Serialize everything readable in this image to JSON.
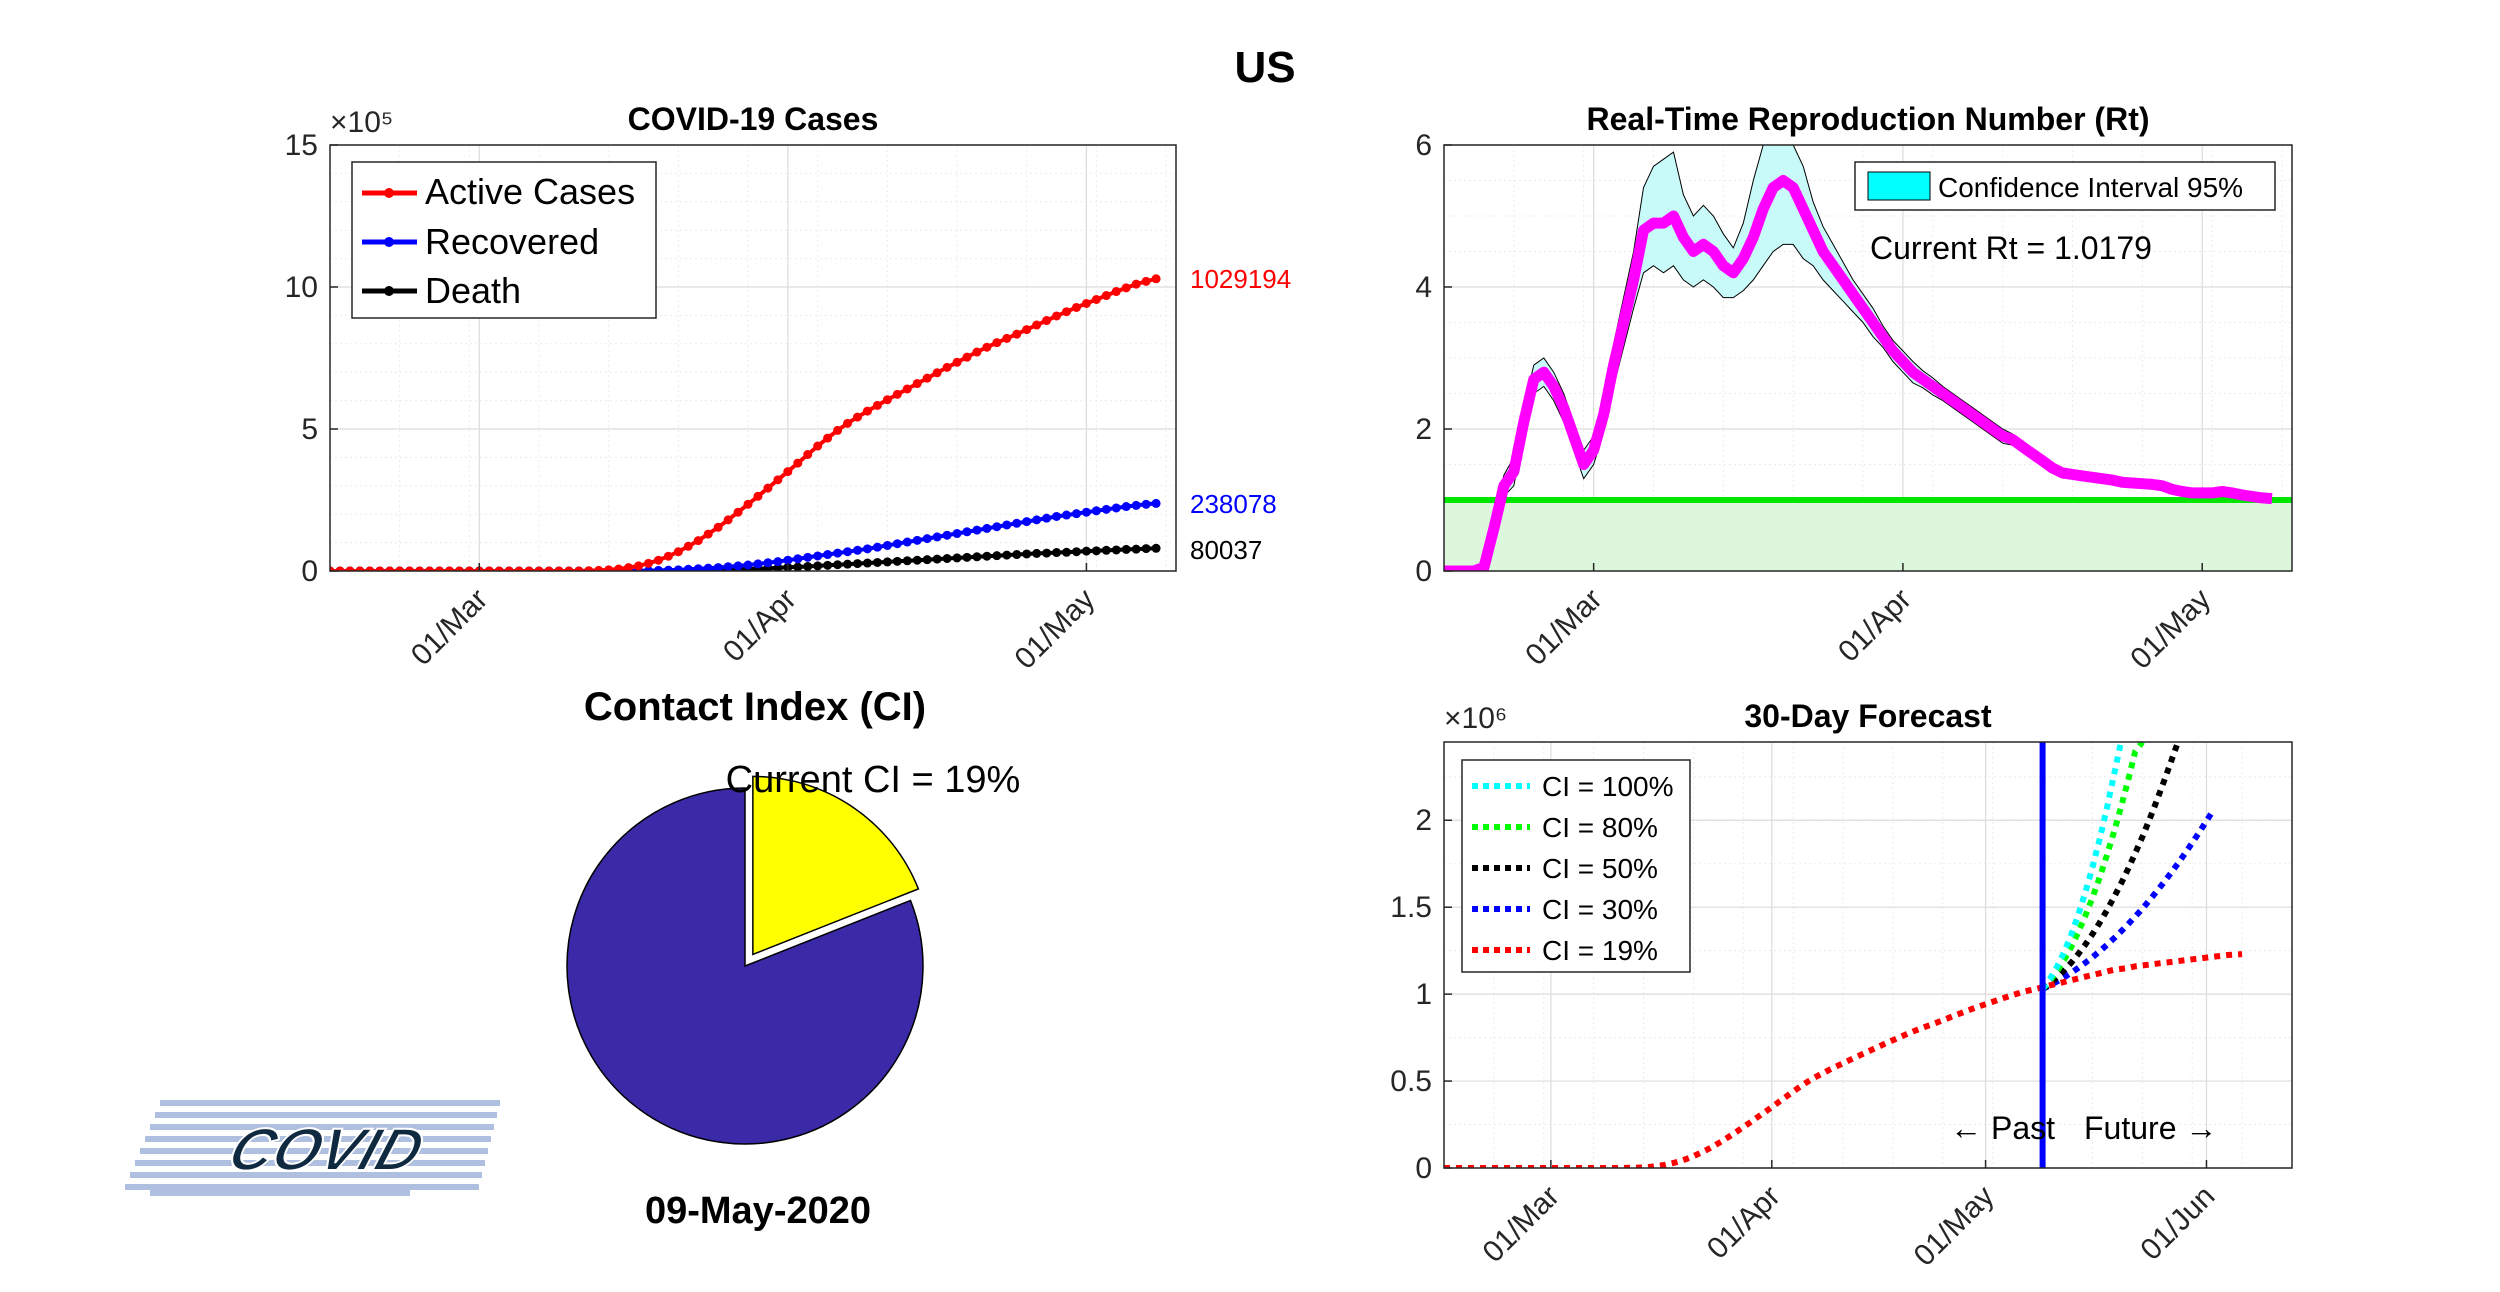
{
  "page": {
    "country": "US",
    "date": "09-May-2020",
    "logo_text": "COVID",
    "ci_title": "Contact Index (CI)",
    "ci_current_text": "Current CI = 19%"
  },
  "colors": {
    "active": "#ff0000",
    "recovered": "#0000ff",
    "death": "#000000",
    "rt_line": "#ff00ff",
    "rt_threshold": "#00e600",
    "ci_band": "#00ffff",
    "pie_main": "#3b2aa8",
    "pie_slice": "#ffff00",
    "forecast_now": "#0000ff"
  },
  "chart_data": [
    {
      "id": "cases",
      "type": "line",
      "title": "COVID-19 Cases",
      "y_exponent_label": "×10⁵",
      "x_ticks": [
        "01/Mar",
        "01/Apr",
        "01/May"
      ],
      "y_ticks": [
        "0",
        "5",
        "10",
        "15"
      ],
      "ylim": [
        0,
        15
      ],
      "legend": [
        "Active Cases",
        "Recovered",
        "Death"
      ],
      "end_labels": [
        "1029194",
        "238078",
        "80037"
      ],
      "x_start_date": "2020-02-15",
      "series": [
        {
          "name": "Active Cases",
          "values": [
            0,
            0,
            0,
            0,
            0,
            0,
            0,
            0,
            0,
            0,
            0,
            0,
            0,
            0,
            0,
            0,
            0,
            0,
            0,
            0,
            0,
            0,
            0,
            0,
            0,
            0,
            0.01,
            0.02,
            0.04,
            0.07,
            0.12,
            0.18,
            0.27,
            0.38,
            0.52,
            0.68,
            0.87,
            1.07,
            1.3,
            1.54,
            1.8,
            2.07,
            2.35,
            2.63,
            2.92,
            3.21,
            3.5,
            3.8,
            4.1,
            4.4,
            4.68,
            4.95,
            5.2,
            5.42,
            5.63,
            5.83,
            6.03,
            6.22,
            6.41,
            6.6,
            6.79,
            6.98,
            7.17,
            7.35,
            7.53,
            7.71,
            7.88,
            8.04,
            8.19,
            8.34,
            8.5,
            8.66,
            8.82,
            8.98,
            9.13,
            9.28,
            9.42,
            9.56,
            9.7,
            9.84,
            9.97,
            10.1,
            10.2,
            10.29
          ]
        },
        {
          "name": "Recovered",
          "values": [
            0,
            0,
            0,
            0,
            0,
            0,
            0,
            0,
            0,
            0,
            0,
            0,
            0,
            0,
            0,
            0,
            0,
            0,
            0,
            0,
            0,
            0,
            0,
            0,
            0,
            0,
            0,
            0,
            0,
            0,
            0,
            0.01,
            0.01,
            0.02,
            0.03,
            0.04,
            0.06,
            0.08,
            0.1,
            0.12,
            0.15,
            0.18,
            0.21,
            0.25,
            0.29,
            0.33,
            0.38,
            0.43,
            0.48,
            0.53,
            0.58,
            0.63,
            0.68,
            0.73,
            0.78,
            0.84,
            0.9,
            0.96,
            1.02,
            1.08,
            1.14,
            1.2,
            1.26,
            1.32,
            1.38,
            1.44,
            1.5,
            1.56,
            1.62,
            1.68,
            1.74,
            1.8,
            1.86,
            1.92,
            1.97,
            2.02,
            2.07,
            2.12,
            2.17,
            2.22,
            2.27,
            2.31,
            2.35,
            2.38
          ]
        },
        {
          "name": "Death",
          "values": [
            0,
            0,
            0,
            0,
            0,
            0,
            0,
            0,
            0,
            0,
            0,
            0,
            0,
            0,
            0,
            0,
            0,
            0,
            0,
            0,
            0,
            0,
            0,
            0,
            0,
            0,
            0,
            0,
            0,
            0,
            0,
            0,
            0,
            0.01,
            0.01,
            0.01,
            0.02,
            0.02,
            0.03,
            0.04,
            0.05,
            0.06,
            0.07,
            0.08,
            0.1,
            0.11,
            0.13,
            0.14,
            0.16,
            0.18,
            0.2,
            0.22,
            0.24,
            0.26,
            0.28,
            0.3,
            0.32,
            0.34,
            0.36,
            0.38,
            0.4,
            0.42,
            0.44,
            0.46,
            0.48,
            0.5,
            0.52,
            0.54,
            0.56,
            0.58,
            0.6,
            0.62,
            0.63,
            0.65,
            0.66,
            0.68,
            0.7,
            0.71,
            0.73,
            0.74,
            0.76,
            0.77,
            0.79,
            0.8
          ]
        }
      ]
    },
    {
      "id": "rt",
      "type": "line",
      "title": "Real-Time Reproduction Number (Rt)",
      "x_ticks": [
        "01/Mar",
        "01/Apr",
        "01/May"
      ],
      "y_ticks": [
        "0",
        "2",
        "4",
        "6"
      ],
      "ylim": [
        0,
        6
      ],
      "threshold": 1,
      "legend": [
        "Confidence Interval 95%"
      ],
      "annotation": "Current Rt = 1.0179",
      "x_start_date": "2020-02-15",
      "series": [
        {
          "name": "Rt",
          "values": [
            0,
            0,
            0,
            0,
            0.05,
            0.6,
            1.2,
            1.4,
            2.1,
            2.7,
            2.8,
            2.6,
            2.3,
            1.9,
            1.5,
            1.7,
            2.2,
            2.9,
            3.5,
            4.1,
            4.8,
            4.9,
            4.9,
            5.0,
            4.7,
            4.5,
            4.6,
            4.5,
            4.3,
            4.2,
            4.4,
            4.7,
            5.1,
            5.4,
            5.5,
            5.4,
            5.1,
            4.8,
            4.5,
            4.3,
            4.1,
            3.9,
            3.7,
            3.5,
            3.3,
            3.1,
            2.95,
            2.8,
            2.7,
            2.6,
            2.5,
            2.4,
            2.3,
            2.2,
            2.1,
            2.0,
            1.9,
            1.85,
            1.75,
            1.65,
            1.55,
            1.45,
            1.38,
            1.36,
            1.34,
            1.32,
            1.3,
            1.28,
            1.25,
            1.24,
            1.23,
            1.22,
            1.2,
            1.15,
            1.12,
            1.1,
            1.1,
            1.1,
            1.12,
            1.1,
            1.07,
            1.05,
            1.03,
            1.02
          ]
        },
        {
          "name": "CI upper",
          "values": [
            0,
            0,
            0,
            0,
            0.15,
            0.75,
            1.35,
            1.6,
            2.3,
            2.9,
            3.0,
            2.8,
            2.5,
            2.1,
            1.7,
            1.9,
            2.45,
            3.2,
            3.85,
            4.5,
            5.4,
            5.7,
            5.8,
            5.9,
            5.3,
            5.0,
            5.15,
            5.0,
            4.75,
            4.55,
            4.9,
            5.5,
            6.0,
            6.0,
            6.0,
            6.0,
            5.7,
            5.2,
            4.85,
            4.6,
            4.35,
            4.1,
            3.9,
            3.7,
            3.45,
            3.25,
            3.1,
            2.95,
            2.82,
            2.72,
            2.6,
            2.5,
            2.4,
            2.3,
            2.2,
            2.1,
            2.0,
            1.93,
            1.83,
            1.73,
            1.62,
            1.52,
            1.44,
            1.42,
            1.39,
            1.37,
            1.35,
            1.32,
            1.29,
            1.28,
            1.27,
            1.26,
            1.24,
            1.19,
            1.16,
            1.14,
            1.13,
            1.13,
            1.15,
            1.13,
            1.1,
            1.08,
            1.06,
            1.05
          ]
        },
        {
          "name": "CI lower",
          "values": [
            0,
            0,
            0,
            0,
            0,
            0.45,
            1.05,
            1.2,
            1.9,
            2.5,
            2.6,
            2.4,
            2.1,
            1.7,
            1.3,
            1.5,
            1.95,
            2.6,
            3.15,
            3.7,
            4.2,
            4.3,
            4.2,
            4.3,
            4.1,
            4.0,
            4.1,
            4.0,
            3.85,
            3.85,
            3.95,
            4.1,
            4.3,
            4.5,
            4.6,
            4.6,
            4.4,
            4.3,
            4.1,
            3.95,
            3.8,
            3.65,
            3.5,
            3.3,
            3.15,
            2.95,
            2.8,
            2.65,
            2.58,
            2.48,
            2.4,
            2.3,
            2.2,
            2.1,
            2.0,
            1.9,
            1.8,
            1.77,
            1.67,
            1.57,
            1.48,
            1.38,
            1.32,
            1.3,
            1.29,
            1.27,
            1.25,
            1.24,
            1.21,
            1.2,
            1.19,
            1.18,
            1.16,
            1.11,
            1.08,
            1.06,
            1.07,
            1.07,
            1.09,
            1.07,
            1.04,
            1.02,
            1.0,
            0.99
          ]
        }
      ]
    },
    {
      "id": "ci_pie",
      "type": "pie",
      "labels": [
        "",
        ""
      ],
      "values": [
        81,
        19
      ]
    },
    {
      "id": "forecast",
      "type": "line",
      "title": "30-Day Forecast",
      "y_exponent_label": "×10⁶",
      "x_ticks": [
        "01/Mar",
        "01/Apr",
        "01/May",
        "01/Jun"
      ],
      "y_ticks": [
        "0",
        "0.5",
        "1",
        "1.5",
        "2"
      ],
      "ylim": [
        0,
        2.45
      ],
      "legend": [
        "CI = 100%",
        "CI = 80%",
        "CI = 50%",
        "CI = 30%",
        "CI = 19%"
      ],
      "past_label": "← Past",
      "future_label": "Future →",
      "today": "2020-05-09",
      "x_start_date": "2020-02-15",
      "series": [
        {
          "name": "CI = 19%",
          "values": [
            0,
            0,
            0,
            0,
            0,
            0,
            0,
            0,
            0,
            0,
            0,
            0,
            0,
            0,
            0,
            0,
            0,
            0,
            0,
            0,
            0,
            0,
            0,
            0,
            0,
            0,
            0.001,
            0.002,
            0.004,
            0.007,
            0.012,
            0.018,
            0.027,
            0.038,
            0.052,
            0.068,
            0.087,
            0.107,
            0.13,
            0.154,
            0.18,
            0.207,
            0.235,
            0.263,
            0.292,
            0.321,
            0.35,
            0.38,
            0.41,
            0.44,
            0.468,
            0.495,
            0.52,
            0.542,
            0.563,
            0.583,
            0.603,
            0.622,
            0.641,
            0.66,
            0.679,
            0.698,
            0.717,
            0.735,
            0.753,
            0.771,
            0.788,
            0.804,
            0.819,
            0.834,
            0.85,
            0.866,
            0.882,
            0.898,
            0.913,
            0.928,
            0.942,
            0.956,
            0.97,
            0.984,
            0.997,
            1.01,
            1.02,
            1.029,
            1.04,
            1.05,
            1.06,
            1.07,
            1.08,
            1.09,
            1.1,
            1.11,
            1.12,
            1.13,
            1.14,
            1.145,
            1.15,
            1.16,
            1.165,
            1.17,
            1.175,
            1.18,
            1.185,
            1.19,
            1.195,
            1.2,
            1.205,
            1.21,
            1.215,
            1.22,
            1.225,
            1.228,
            1.23
          ]
        },
        {
          "name": "CI = 30%",
          "values": [
            1.029,
            1.05,
            1.072,
            1.096,
            1.122,
            1.15,
            1.18,
            1.212,
            1.246,
            1.282,
            1.32,
            1.36,
            1.402,
            1.446,
            1.492,
            1.54,
            1.59,
            1.642,
            1.696,
            1.752,
            1.81,
            1.87,
            1.932,
            1.996,
            2.06
          ]
        },
        {
          "name": "CI = 50%",
          "values": [
            1.029,
            1.06,
            1.095,
            1.135,
            1.18,
            1.23,
            1.285,
            1.345,
            1.41,
            1.48,
            1.555,
            1.635,
            1.72,
            1.81,
            1.905,
            2.005,
            2.11,
            2.22,
            2.335,
            2.45
          ]
        },
        {
          "name": "CI = 80%",
          "values": [
            1.029,
            1.075,
            1.13,
            1.195,
            1.27,
            1.355,
            1.45,
            1.555,
            1.67,
            1.795,
            1.93,
            2.075,
            2.23,
            2.395,
            2.45
          ]
        },
        {
          "name": "CI = 100%",
          "values": [
            1.029,
            1.085,
            1.155,
            1.24,
            1.34,
            1.455,
            1.585,
            1.73,
            1.89,
            2.065,
            2.255,
            2.45
          ]
        }
      ]
    }
  ]
}
